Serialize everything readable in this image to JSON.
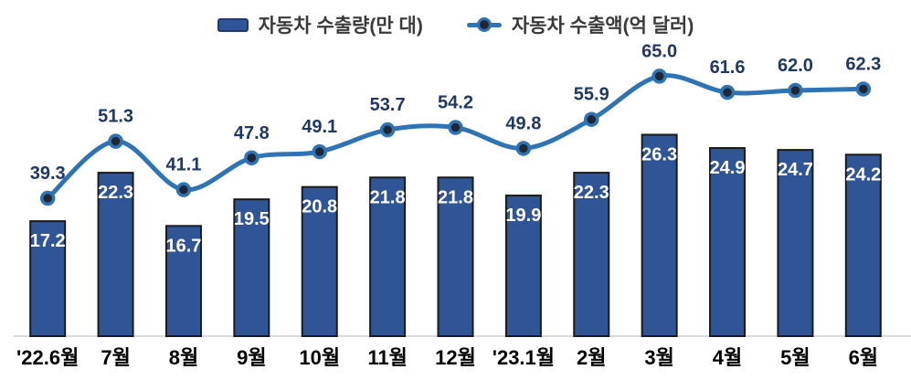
{
  "legend": {
    "bar_label": "자동차 수출량(만 대)",
    "line_label": "자동차 수출액(억 달러)"
  },
  "colors": {
    "bar_fill": "#2F5597",
    "bar_border": "#1A1A1A",
    "line": "#2E74B5",
    "marker_fill": "#202734",
    "bar_label_text": "#FFFFFF",
    "line_label_text": "#1F3864",
    "x_label_text": "#000000",
    "axis_line": "#D9D9D9",
    "legend_text": "#3A3A3A",
    "background": "#FFFFFF"
  },
  "chart_data": {
    "type": "bar",
    "subtype": "combo-bar-line",
    "title": "",
    "xlabel": "",
    "ylabel": "",
    "categories": [
      "'22.6월",
      "7월",
      "8월",
      "9월",
      "10월",
      "11월",
      "12월",
      "'23.1월",
      "2월",
      "3월",
      "4월",
      "5월",
      "6월"
    ],
    "series": [
      {
        "name": "자동차 수출량(만 대)",
        "type": "bar",
        "values": [
          17.2,
          22.3,
          16.7,
          19.5,
          20.8,
          21.8,
          21.8,
          19.9,
          22.3,
          26.3,
          24.9,
          24.7,
          24.2
        ]
      },
      {
        "name": "자동차 수출액(억 달러)",
        "type": "line",
        "values": [
          39.3,
          51.3,
          41.1,
          47.8,
          49.1,
          53.7,
          54.2,
          49.8,
          55.9,
          65.0,
          61.6,
          62.0,
          62.3
        ]
      }
    ],
    "legend_position": "top",
    "grid": false,
    "axes_hidden": true,
    "data_labels": true,
    "line_smoothed": true
  }
}
